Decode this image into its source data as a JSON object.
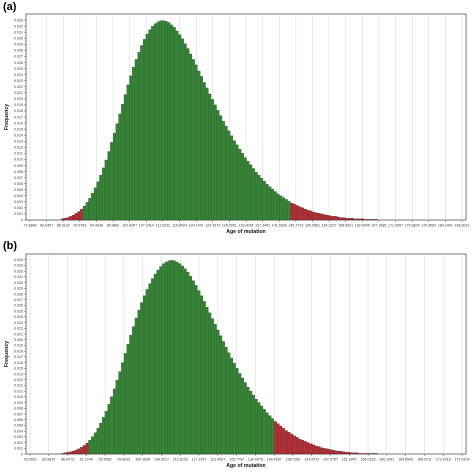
{
  "chart_data": [
    {
      "type": "bar",
      "panel_label": "(a)",
      "xlabel": "Age of mutation",
      "ylabel": "Frequency",
      "x_ticks": [
        "77.6848",
        "82.0407",
        "86.3120",
        "90.5763",
        "94.4938",
        "98.9881",
        "102.8457",
        "107.2414",
        "111.6232",
        "115.8924",
        "120.1441",
        "124.3573",
        "128.6551",
        "133.0034",
        "137.3491",
        "141.5928",
        "145.7723",
        "150.0561",
        "154.3227",
        "158.5931",
        "162.9049",
        "167.1685",
        "171.3957",
        "175.6829",
        "179.9662",
        "184.2491",
        "188.5031"
      ],
      "y_ticks": [
        "0",
        "0.001",
        "0.002",
        "0.003",
        "0.004",
        "0.005",
        "0.006",
        "0.007",
        "0.008",
        "0.009",
        "0.010",
        "0.011",
        "0.012",
        "0.013",
        "0.014",
        "0.015",
        "0.016",
        "0.017",
        "0.018",
        "0.019",
        "0.020",
        "0.021",
        "0.022",
        "0.023",
        "0.024",
        "0.025",
        "0.026",
        "0.027",
        "0.028",
        "0.029",
        "0.030",
        "0.031",
        "0.032",
        "0.033"
      ],
      "ylim": [
        0,
        0.034
      ],
      "highlight_color_low": "#c0262e",
      "highlight_color_high": "#c0262e",
      "main_color": "#2e8b2e",
      "series": [
        {
          "values": [
            0.0002,
            0.0003,
            0.0004,
            0.0006,
            0.0008,
            0.0011,
            0.0014,
            0.0018,
            0.0023,
            0.0029,
            0.0036,
            0.0044,
            0.0053,
            0.0063,
            0.0074,
            0.0086,
            0.0099,
            0.0113,
            0.0128,
            0.0143,
            0.0159,
            0.0175,
            0.0191,
            0.0207,
            0.0223,
            0.0238,
            0.0252,
            0.0265,
            0.0277,
            0.0288,
            0.0298,
            0.0307,
            0.0314,
            0.032,
            0.0324,
            0.0327,
            0.0329,
            0.0329,
            0.0328,
            0.0326,
            0.0322,
            0.0318,
            0.0312,
            0.0306,
            0.0299,
            0.0291,
            0.0283,
            0.0274,
            0.0265,
            0.0256,
            0.0246,
            0.0237,
            0.0227,
            0.0218,
            0.0208,
            0.0199,
            0.019,
            0.0181,
            0.0172,
            0.0163,
            0.0155,
            0.0147,
            0.0139,
            0.0131,
            0.0124,
            0.0117,
            0.011,
            0.0103,
            0.0097,
            0.0091,
            0.0085,
            0.0079,
            0.0074,
            0.0069,
            0.0064,
            0.0059,
            0.0055,
            0.0051,
            0.0047,
            0.0043,
            0.004,
            0.0037,
            0.0034,
            0.0031,
            0.0028,
            0.0026,
            0.0024,
            0.0022,
            0.002,
            0.0018,
            0.0016,
            0.0015,
            0.0013,
            0.0012,
            0.0011,
            0.001,
            0.0009,
            0.0008,
            0.0007,
            0.0006,
            0.0006,
            0.0005,
            0.0004,
            0.0004,
            0.0003,
            0.0003,
            0.0003,
            0.0002,
            0.0002,
            0.0002,
            0.0002,
            0.0001,
            0.0001,
            0.0001,
            0.0001,
            0.0001
          ],
          "highlight_low_count": 8,
          "highlight_high_start": 84
        }
      ]
    },
    {
      "type": "bar",
      "panel_label": "(b)",
      "xlabel": "Age of mutation",
      "ylabel": "Frequency",
      "x_ticks": [
        "78.2823",
        "82.5870",
        "86.9073",
        "91.2249",
        "95.5452",
        "99.8616",
        "104.1838",
        "108.5017",
        "112.8218",
        "117.1397",
        "121.4597",
        "125.7792",
        "130.0976",
        "134.4187",
        "138.7381",
        "143.0572",
        "147.3767",
        "151.6957",
        "156.0162",
        "160.3341",
        "164.6542",
        "168.9711",
        "173.2916",
        "177.6109"
      ],
      "y_ticks": [
        "0",
        "0.001",
        "0.002",
        "0.003",
        "0.004",
        "0.005",
        "0.006",
        "0.007",
        "0.008",
        "0.009",
        "0.010",
        "0.011",
        "0.012",
        "0.013",
        "0.014",
        "0.015",
        "0.016",
        "0.017",
        "0.018",
        "0.019",
        "0.020",
        "0.021",
        "0.022",
        "0.023",
        "0.024",
        "0.025",
        "0.026",
        "0.027",
        "0.028",
        "0.029",
        "0.030",
        "0.031",
        "0.032",
        "0.033",
        "0.034"
      ],
      "ylim": [
        0,
        0.035
      ],
      "highlight_color_low": "#c0262e",
      "highlight_color_high": "#c0262e",
      "main_color": "#2e8b2e",
      "series": [
        {
          "values": [
            0.0001,
            0.0002,
            0.0003,
            0.0004,
            0.0005,
            0.0007,
            0.0009,
            0.0012,
            0.0015,
            0.0019,
            0.0024,
            0.003,
            0.0037,
            0.0045,
            0.0054,
            0.0064,
            0.0075,
            0.0087,
            0.01,
            0.0114,
            0.0129,
            0.0144,
            0.016,
            0.0176,
            0.0192,
            0.0208,
            0.0223,
            0.0238,
            0.0252,
            0.0265,
            0.0277,
            0.0288,
            0.0298,
            0.0307,
            0.0315,
            0.0322,
            0.0328,
            0.0333,
            0.0336,
            0.0338,
            0.0339,
            0.0338,
            0.0336,
            0.0333,
            0.0329,
            0.0324,
            0.0318,
            0.0311,
            0.0303,
            0.0295,
            0.0286,
            0.0277,
            0.0267,
            0.0257,
            0.0247,
            0.0237,
            0.0227,
            0.0217,
            0.0207,
            0.0197,
            0.0187,
            0.0177,
            0.0168,
            0.0159,
            0.015,
            0.0141,
            0.0133,
            0.0125,
            0.0117,
            0.011,
            0.0103,
            0.0096,
            0.009,
            0.0084,
            0.0078,
            0.0072,
            0.0067,
            0.0062,
            0.0057,
            0.0053,
            0.0049,
            0.0045,
            0.0041,
            0.0038,
            0.0035,
            0.0032,
            0.0029,
            0.0026,
            0.0024,
            0.0022,
            0.002,
            0.0018,
            0.0016,
            0.0014,
            0.0013,
            0.0011,
            0.001,
            0.0009,
            0.0008,
            0.0007,
            0.0006,
            0.0005,
            0.0005,
            0.0004,
            0.0003,
            0.0003,
            0.0002,
            0.0002,
            0.0002,
            0.0001,
            0.0001,
            0.0001,
            0.0001,
            0.0001,
            0.0001,
            0.0001
          ],
          "highlight_low_count": 10,
          "highlight_high_start": 78
        }
      ]
    }
  ]
}
